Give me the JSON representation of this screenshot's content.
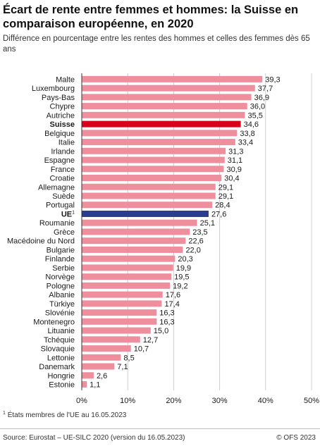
{
  "header": {
    "title": "Écart de rente entre femmes et hommes: la Suisse en comparaison européenne, en 2020",
    "subtitle": "Différence en pourcentage entre les rentes des hommes et celles des femmes dès 65 ans"
  },
  "chart_data": {
    "type": "bar",
    "orientation": "horizontal",
    "title": "Écart de rente entre femmes et hommes: la Suisse en comparaison européenne, en 2020",
    "subtitle": "Différence en pourcentage entre les rentes des hommes et celles des femmes dès 65 ans",
    "categories": [
      "Malte",
      "Luxembourg",
      "Pays-Bas",
      "Chypre",
      "Autriche",
      "Suisse",
      "Belgique",
      "Italie",
      "Irlande",
      "Espagne",
      "France",
      "Croatie",
      "Allemagne",
      "Suède",
      "Portugal",
      "UE",
      "Roumanie",
      "Grèce",
      "Macédoine du Nord",
      "Bulgarie",
      "Finlande",
      "Serbie",
      "Norvège",
      "Pologne",
      "Albanie",
      "Türkiye",
      "Slovénie",
      "Montenegro",
      "Lituanie",
      "Tchéquie",
      "Slovaquie",
      "Lettonie",
      "Danemark",
      "Hongrie",
      "Estonie"
    ],
    "values": [
      39.3,
      37.7,
      36.9,
      36.0,
      35.5,
      34.6,
      33.8,
      33.4,
      31.3,
      31.1,
      30.9,
      30.4,
      29.1,
      29.1,
      28.4,
      27.6,
      25.1,
      23.5,
      22.6,
      22.0,
      20.3,
      19.9,
      19.5,
      19.2,
      17.6,
      17.4,
      16.3,
      16.3,
      15.0,
      12.7,
      10.7,
      8.5,
      7.1,
      2.6,
      1.1
    ],
    "value_labels": [
      "39,3",
      "37,7",
      "36,9",
      "36,0",
      "35,5",
      "34,6",
      "33,8",
      "33,4",
      "31,3",
      "31,1",
      "30,9",
      "30,4",
      "29,1",
      "29,1",
      "28,4",
      "27,6",
      "25,1",
      "23,5",
      "22,6",
      "22,0",
      "20,3",
      "19,9",
      "19,5",
      "19,2",
      "17,6",
      "17,4",
      "16,3",
      "16,3",
      "15,0",
      "12,7",
      "10,7",
      "8,5",
      "7,1",
      "2,6",
      "1,1"
    ],
    "bold_categories": [
      "Suisse",
      "UE"
    ],
    "superscripts": {
      "UE": "1"
    },
    "xlim": [
      0,
      50
    ],
    "xticks": [
      0,
      10,
      20,
      30,
      40,
      50
    ],
    "xtick_labels": [
      "0%",
      "10%",
      "20%",
      "30%",
      "40%",
      "50%"
    ],
    "grid": "vertical",
    "colors": {
      "default": "#ef8f9e",
      "Suisse": "#d9001b",
      "UE": "#2a3d8f",
      "grid": "#cccccc",
      "axis": "#333333"
    }
  },
  "footnote": {
    "mark": "1",
    "text": "États membres de l'UE au 16.05.2023"
  },
  "footer": {
    "source": "Source: Eurostat – UE-SILC 2020 (version du 16.05.2023)",
    "copyright": "© OFS 2023"
  }
}
